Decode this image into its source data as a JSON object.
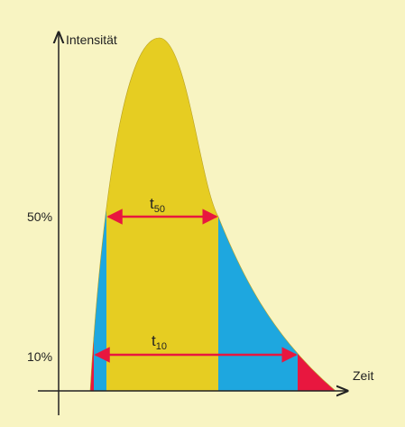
{
  "y_axis_label": "Intensität",
  "x_axis_label": "Zeit",
  "levels": [
    {
      "label": "50%",
      "arrow": {
        "symbol": "t",
        "subscript": "50"
      }
    },
    {
      "label": "10%",
      "arrow": {
        "symbol": "t",
        "subscript": "10"
      }
    }
  ]
}
